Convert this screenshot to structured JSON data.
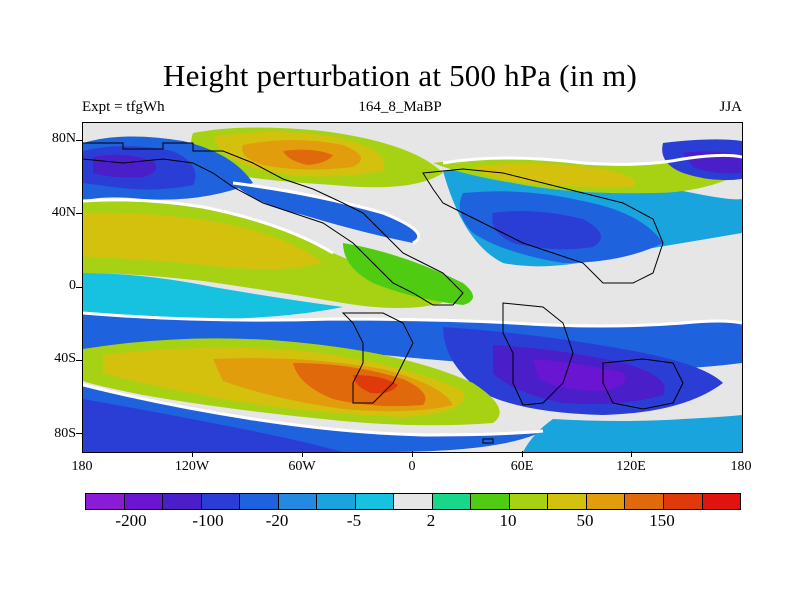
{
  "title": "Height perturbation at 500 hPa (in m)",
  "subtitle_left": "Expt = tfgWh",
  "subtitle_center": "164_8_MaBP",
  "subtitle_right": "JJA",
  "y_ticks": [
    "80N",
    "40N",
    "0",
    "40S",
    "80S"
  ],
  "x_ticks": [
    "180",
    "120W",
    "60W",
    "0",
    "60E",
    "120E",
    "180"
  ],
  "colorbar": {
    "colors": [
      "#8a1bd6",
      "#6a15d1",
      "#4a1ec8",
      "#2a3ed6",
      "#1f62de",
      "#2489e0",
      "#1aa4dd",
      "#16c2e0",
      "#e6e6e6",
      "#18d78a",
      "#4fcc12",
      "#a6d213",
      "#d4c10e",
      "#e29d0d",
      "#e06a0b",
      "#e03a0c",
      "#e0140c"
    ],
    "labels": [
      "-200",
      "-100",
      "-20",
      "-5",
      "2",
      "10",
      "50",
      "150"
    ]
  },
  "colors": {
    "violet": "#6a15d1",
    "dark_blue": "#2a3ed6",
    "blue": "#1f62de",
    "light_blue": "#1aa4dd",
    "cyan": "#16c2e0",
    "neutral": "#e6e6e6",
    "green": "#4fcc12",
    "yellow_green": "#a6d213",
    "yellow": "#d4c10e",
    "orange": "#e29d0d",
    "dark_orange": "#e06a0b",
    "red": "#e03a0c"
  }
}
